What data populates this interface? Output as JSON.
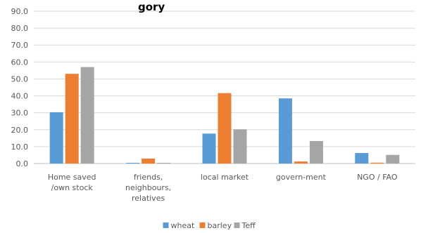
{
  "chart_data": {
    "type": "bar",
    "title": "gory",
    "categories": [
      [
        "Home saved",
        "/own stock"
      ],
      [
        "friends,",
        "neighbours,",
        "relatives"
      ],
      [
        "local market"
      ],
      [
        "govern-ment"
      ],
      [
        "NGO / FAO"
      ]
    ],
    "series": [
      {
        "name": "wheat",
        "color": "#5b9bd5",
        "values": [
          30.3,
          0.4,
          17.7,
          38.5,
          6.2
        ]
      },
      {
        "name": "barley",
        "color": "#ed7d31",
        "values": [
          53.0,
          2.9,
          41.6,
          1.2,
          0.5
        ]
      },
      {
        "name": "Teff",
        "color": "#a5a5a5",
        "values": [
          57.0,
          0.4,
          20.2,
          13.3,
          5.1
        ]
      }
    ],
    "ylim": [
      0,
      90
    ],
    "ytick_step": 10,
    "ytick_labels": [
      "0.0",
      "10.0",
      "20.0",
      "30.0",
      "40.0",
      "50.0",
      "60.0",
      "70.0",
      "80.0",
      "90.0"
    ],
    "grid": true,
    "legend": "bottom",
    "xlabel": "",
    "ylabel": ""
  }
}
